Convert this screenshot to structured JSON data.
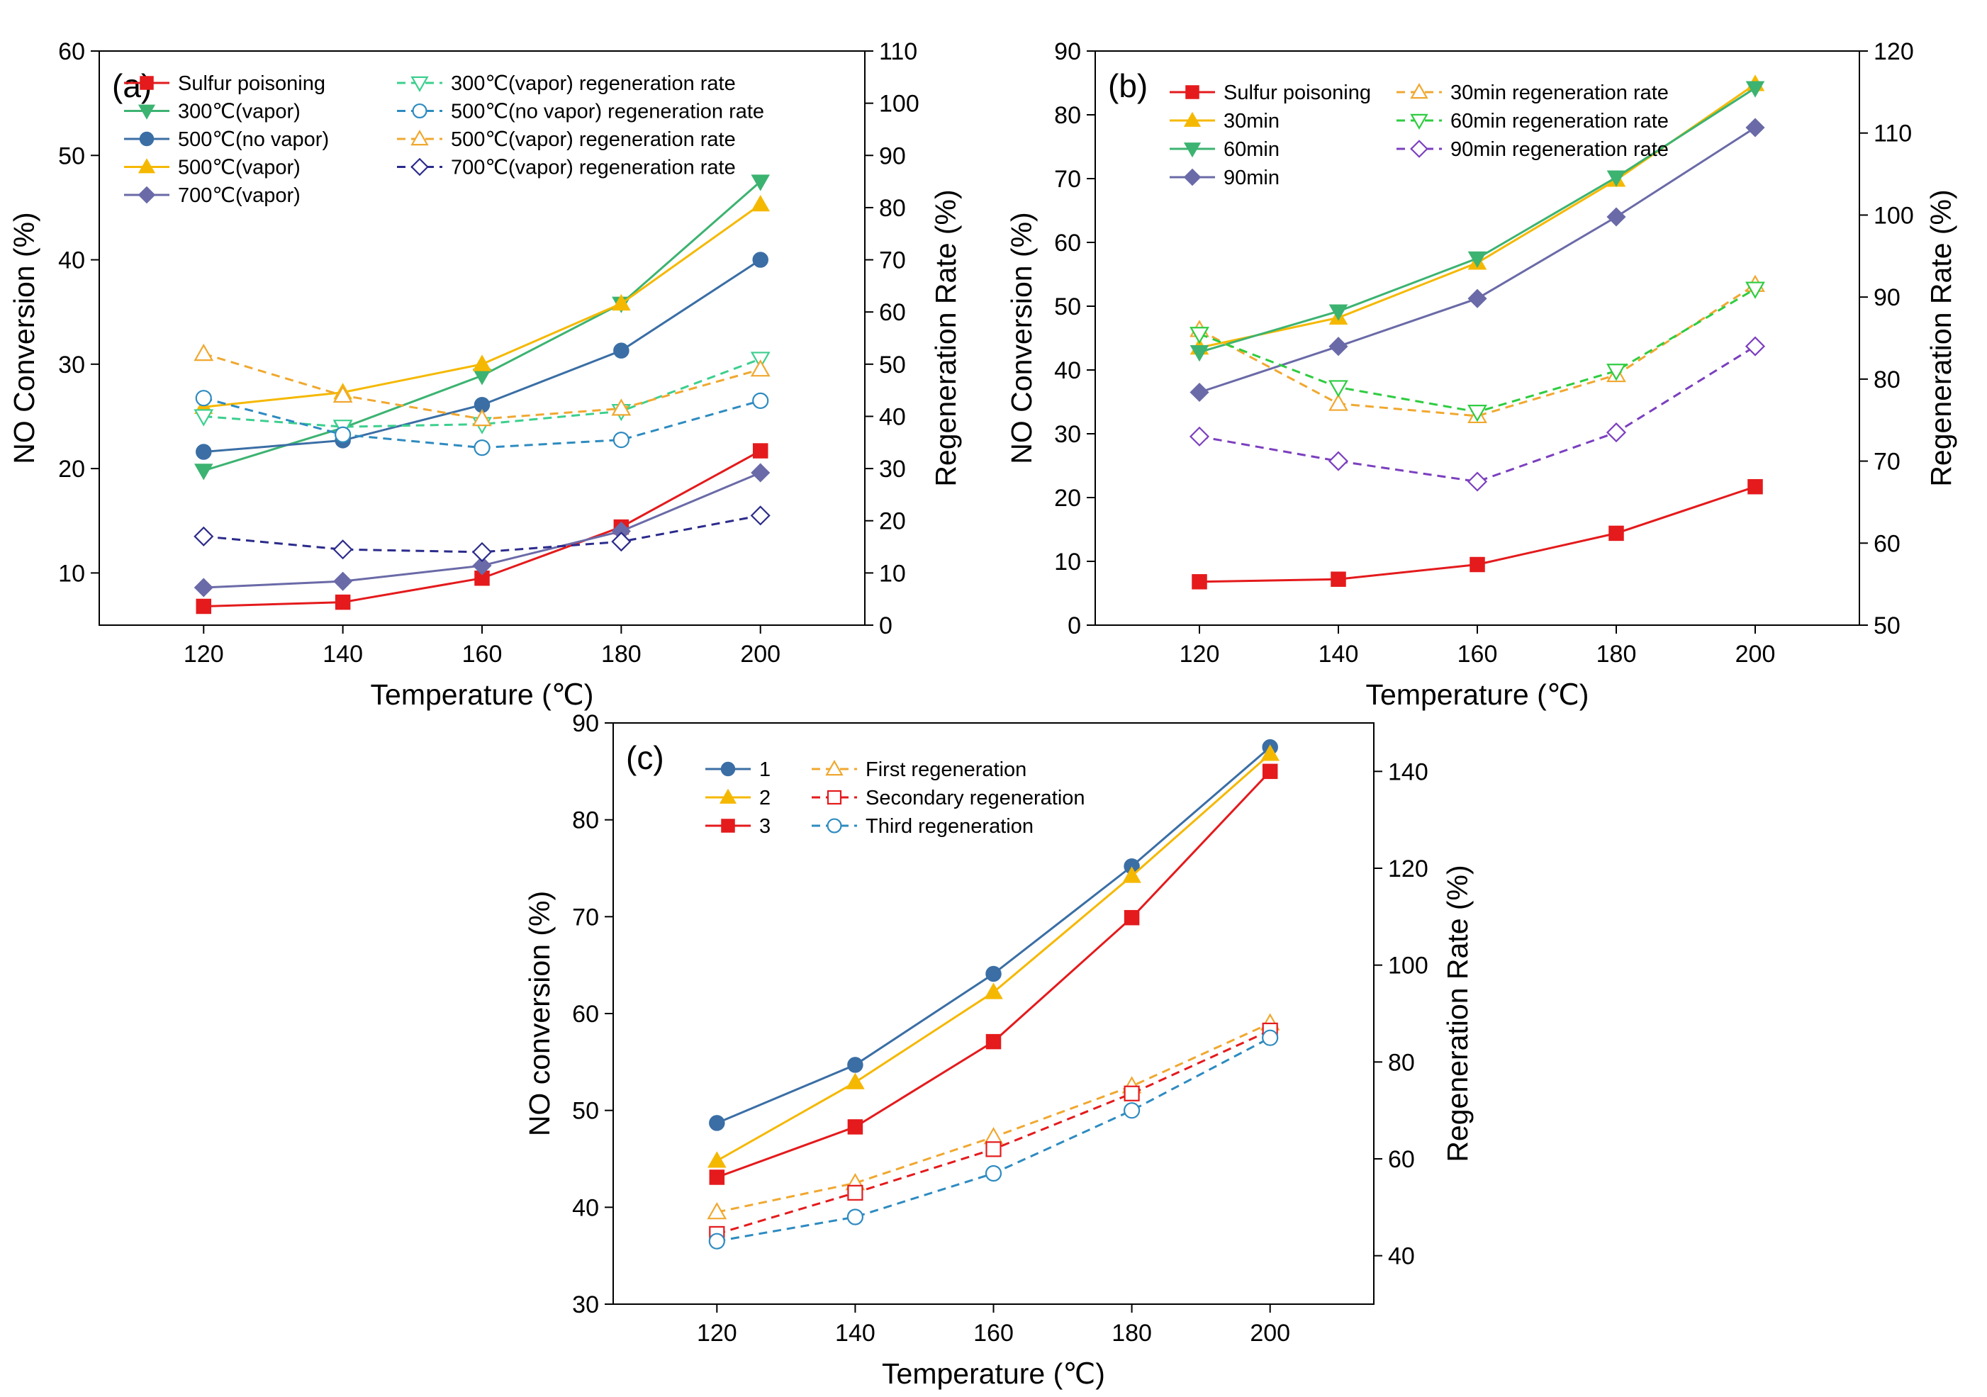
{
  "chart_data": [
    {
      "type": "line",
      "panel_label": "(a)",
      "xlabel": "Temperature (℃)",
      "ylabel": "NO Conversion (%)",
      "y2label": "Regeneration Rate (%)",
      "xlim": [
        105,
        215
      ],
      "ylim": [
        5,
        60
      ],
      "y2lim": [
        0,
        110
      ],
      "xticks": [
        120,
        140,
        160,
        180,
        200
      ],
      "yticks": [
        10,
        20,
        30,
        40,
        50,
        60
      ],
      "y2ticks": [
        0,
        10,
        20,
        30,
        40,
        50,
        60,
        70,
        80,
        90,
        100,
        110
      ],
      "x": [
        120,
        140,
        160,
        180,
        200
      ],
      "legend_columns": 2,
      "series": [
        {
          "name": "Sulfur poisoning",
          "axis": "left",
          "color": "#e41a1c",
          "marker": "square",
          "filled": true,
          "dashed": false,
          "values": [
            6.8,
            7.2,
            9.5,
            14.4,
            21.7
          ]
        },
        {
          "name": "300℃(vapor)",
          "axis": "left",
          "color": "#3cb371",
          "marker": "triangle-down",
          "filled": true,
          "dashed": false,
          "values": [
            19.8,
            23.9,
            28.9,
            35.8,
            47.5
          ]
        },
        {
          "name": "500℃(no vapor)",
          "axis": "left",
          "color": "#3a6ea5",
          "marker": "circle",
          "filled": true,
          "dashed": false,
          "values": [
            21.6,
            22.7,
            26.1,
            31.3,
            40.0
          ]
        },
        {
          "name": "500℃(vapor)",
          "axis": "left",
          "color": "#f5b800",
          "marker": "triangle",
          "filled": true,
          "dashed": false,
          "values": [
            25.9,
            27.3,
            30.0,
            35.8,
            45.3
          ]
        },
        {
          "name": "700℃(vapor)",
          "axis": "left",
          "color": "#6a6aa8",
          "marker": "diamond",
          "filled": true,
          "dashed": false,
          "values": [
            8.6,
            9.2,
            10.7,
            14.0,
            19.6
          ]
        },
        {
          "name": "300℃(vapor) regeneration rate",
          "axis": "right",
          "color": "#3ccf8e",
          "marker": "triangle-down",
          "filled": false,
          "dashed": true,
          "values": [
            40.0,
            38.0,
            38.5,
            41.0,
            51.0
          ]
        },
        {
          "name": "500℃(no vapor) regeneration rate",
          "axis": "right",
          "color": "#2e8bc0",
          "marker": "circle",
          "filled": false,
          "dashed": true,
          "values": [
            43.5,
            36.5,
            34.0,
            35.5,
            43.0
          ]
        },
        {
          "name": "500℃(vapor) regeneration rate",
          "axis": "right",
          "color": "#f0a830",
          "marker": "triangle",
          "filled": false,
          "dashed": true,
          "values": [
            52.0,
            44.0,
            39.5,
            41.5,
            49.0
          ]
        },
        {
          "name": "700℃(vapor) regeneration rate",
          "axis": "right",
          "color": "#2b2b8c",
          "marker": "diamond",
          "filled": false,
          "dashed": true,
          "values": [
            17.0,
            14.5,
            14.0,
            16.0,
            21.0
          ]
        }
      ]
    },
    {
      "type": "line",
      "panel_label": "(b)",
      "xlabel": "Temperature (℃)",
      "ylabel": "NO Conversion (%)",
      "y2label": "Regeneration Rate (%)",
      "xlim": [
        105,
        215
      ],
      "ylim": [
        0,
        90
      ],
      "y2lim": [
        50,
        120
      ],
      "xticks": [
        120,
        140,
        160,
        180,
        200
      ],
      "yticks": [
        0,
        10,
        20,
        30,
        40,
        50,
        60,
        70,
        80,
        90
      ],
      "y2ticks": [
        50,
        60,
        70,
        80,
        90,
        100,
        110,
        120
      ],
      "x": [
        120,
        140,
        160,
        180,
        200
      ],
      "legend_columns": 2,
      "series": [
        {
          "name": "Sulfur poisoning",
          "axis": "left",
          "color": "#e41a1c",
          "marker": "square",
          "filled": true,
          "dashed": false,
          "values": [
            6.8,
            7.2,
            9.5,
            14.4,
            21.7
          ]
        },
        {
          "name": "30min",
          "axis": "left",
          "color": "#f5b800",
          "marker": "triangle",
          "filled": true,
          "dashed": false,
          "values": [
            43.5,
            48.2,
            56.8,
            69.8,
            84.8
          ]
        },
        {
          "name": "60min",
          "axis": "left",
          "color": "#3cb371",
          "marker": "triangle-down",
          "filled": true,
          "dashed": false,
          "values": [
            42.8,
            49.2,
            57.5,
            70.2,
            84.2
          ]
        },
        {
          "name": "90min",
          "axis": "left",
          "color": "#6a6aa8",
          "marker": "diamond",
          "filled": true,
          "dashed": false,
          "values": [
            36.5,
            43.7,
            51.2,
            64.0,
            78.0
          ]
        },
        {
          "name": "30min regeneration rate",
          "axis": "right",
          "color": "#f0a830",
          "marker": "triangle",
          "filled": false,
          "dashed": true,
          "values": [
            86.0,
            77.0,
            75.5,
            80.5,
            91.5
          ]
        },
        {
          "name": "60min regeneration rate",
          "axis": "right",
          "color": "#2ecc40",
          "marker": "triangle-down",
          "filled": false,
          "dashed": true,
          "values": [
            85.5,
            79.0,
            76.0,
            81.0,
            91.0
          ]
        },
        {
          "name": "90min regeneration rate",
          "axis": "right",
          "color": "#7b3fbf",
          "marker": "diamond",
          "filled": false,
          "dashed": true,
          "values": [
            73.0,
            70.0,
            67.5,
            73.5,
            84.0
          ]
        }
      ]
    },
    {
      "type": "line",
      "panel_label": "(c)",
      "xlabel": "Temperature (℃)",
      "ylabel": "NO conversion (%)",
      "y2label": "Regeneration Rate (%)",
      "xlim": [
        105,
        215
      ],
      "ylim": [
        30,
        90
      ],
      "y2lim": [
        30,
        150
      ],
      "xticks": [
        120,
        140,
        160,
        180,
        200
      ],
      "yticks": [
        30,
        40,
        50,
        60,
        70,
        80,
        90
      ],
      "y2ticks": [
        40,
        60,
        80,
        100,
        120,
        140
      ],
      "x": [
        120,
        140,
        160,
        180,
        200
      ],
      "legend_columns": 2,
      "series": [
        {
          "name": "1",
          "axis": "left",
          "color": "#3a6ea5",
          "marker": "circle",
          "filled": true,
          "dashed": false,
          "values": [
            48.7,
            54.7,
            64.1,
            75.2,
            87.5
          ]
        },
        {
          "name": "2",
          "axis": "left",
          "color": "#f5b800",
          "marker": "triangle",
          "filled": true,
          "dashed": false,
          "values": [
            44.8,
            52.9,
            62.2,
            74.2,
            86.8
          ]
        },
        {
          "name": "3",
          "axis": "left",
          "color": "#e41a1c",
          "marker": "square",
          "filled": true,
          "dashed": false,
          "values": [
            43.1,
            48.3,
            57.1,
            69.9,
            85.0
          ]
        },
        {
          "name": "First regeneration",
          "axis": "right",
          "color": "#f0a830",
          "marker": "triangle",
          "filled": false,
          "dashed": true,
          "values": [
            49.0,
            55.0,
            64.5,
            75.0,
            88.0
          ]
        },
        {
          "name": "Secondary regeneration",
          "axis": "right",
          "color": "#e41a1c",
          "marker": "square",
          "filled": false,
          "dashed": true,
          "values": [
            44.5,
            53.0,
            62.0,
            73.5,
            86.5
          ]
        },
        {
          "name": "Third regeneration",
          "axis": "right",
          "color": "#2e8bc0",
          "marker": "circle",
          "filled": false,
          "dashed": true,
          "values": [
            43.0,
            48.0,
            57.0,
            70.0,
            85.0
          ]
        }
      ]
    }
  ]
}
